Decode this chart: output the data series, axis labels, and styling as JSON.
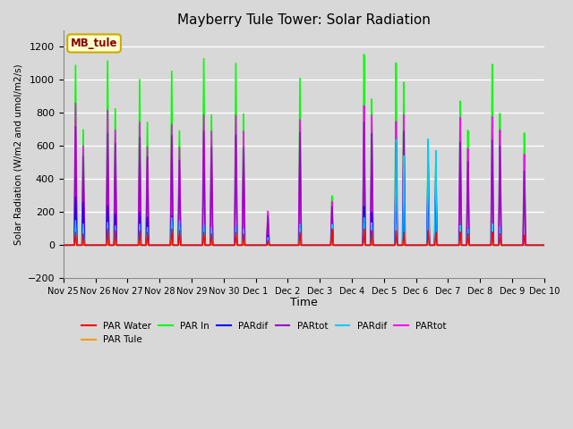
{
  "title": "Mayberry Tule Tower: Solar Radiation",
  "ylabel": "Solar Radiation (W/m2 and umol/m2/s)",
  "xlabel": "Time",
  "ylim": [
    -200,
    1300
  ],
  "yticks": [
    -200,
    0,
    200,
    400,
    600,
    800,
    1000,
    1200
  ],
  "background_color": "#d8d8d8",
  "legend_label": "MB_tule",
  "legend_bg": "#ffffcc",
  "legend_border": "#ccaa00",
  "x_tick_labels": [
    "Nov 25",
    "Nov 26",
    "Nov 27",
    "Nov 28",
    "Nov 29",
    "Nov 30",
    "Dec 1",
    "Dec 2",
    "Dec 3",
    "Dec 4",
    "Dec 5",
    "Dec 6",
    "Dec 7",
    "Dec 8",
    "Dec 9",
    "Dec 10"
  ],
  "day_peaks_green": [
    1090,
    1120,
    1010,
    1065,
    1145,
    1120,
    200,
    1035,
    305,
    1175,
    1120,
    650,
    880,
    1100,
    680,
    0
  ],
  "day_peaks_mag": [
    860,
    820,
    750,
    740,
    800,
    800,
    210,
    780,
    270,
    860,
    760,
    500,
    780,
    780,
    550,
    0
  ],
  "day_peaks_purple": [
    720,
    680,
    660,
    670,
    700,
    680,
    180,
    700,
    240,
    760,
    640,
    490,
    630,
    640,
    450,
    0
  ],
  "day_peaks_blue": [
    290,
    240,
    200,
    180,
    110,
    110,
    60,
    120,
    130,
    240,
    420,
    410,
    120,
    120,
    0,
    0
  ],
  "day_peaks_cyan": [
    150,
    140,
    130,
    170,
    130,
    120,
    50,
    130,
    130,
    170,
    650,
    650,
    120,
    130,
    0,
    0
  ],
  "day_peaks_red": [
    80,
    100,
    90,
    100,
    80,
    80,
    30,
    80,
    100,
    100,
    90,
    90,
    80,
    80,
    60,
    0
  ],
  "day_peaks_orange": [
    60,
    55,
    50,
    55,
    60,
    65,
    15,
    50,
    15,
    55,
    50,
    30,
    35,
    35,
    30,
    0
  ],
  "day_peaks2_green": [
    700,
    830,
    750,
    700,
    800,
    810,
    0,
    0,
    0,
    900,
    1000,
    500,
    700,
    800,
    0,
    0
  ],
  "day_peaks2_mag": [
    600,
    700,
    600,
    600,
    700,
    700,
    0,
    0,
    0,
    800,
    800,
    430,
    590,
    700,
    0,
    0
  ],
  "day_peaks2_purple": [
    540,
    620,
    540,
    520,
    600,
    600,
    0,
    0,
    0,
    690,
    700,
    380,
    510,
    600,
    0,
    0
  ],
  "day_peaks2_blue": [
    260,
    190,
    170,
    140,
    90,
    80,
    0,
    0,
    0,
    200,
    350,
    380,
    100,
    90,
    0,
    0
  ],
  "day_peaks2_cyan": [
    130,
    120,
    110,
    150,
    110,
    100,
    0,
    0,
    0,
    140,
    550,
    580,
    100,
    110,
    0,
    0
  ],
  "day_peaks2_red": [
    70,
    90,
    80,
    90,
    70,
    70,
    0,
    0,
    0,
    90,
    80,
    80,
    70,
    70,
    0,
    0
  ],
  "day_peaks2_orange": [
    50,
    48,
    42,
    48,
    50,
    55,
    0,
    0,
    0,
    48,
    42,
    25,
    30,
    30,
    0,
    0
  ]
}
